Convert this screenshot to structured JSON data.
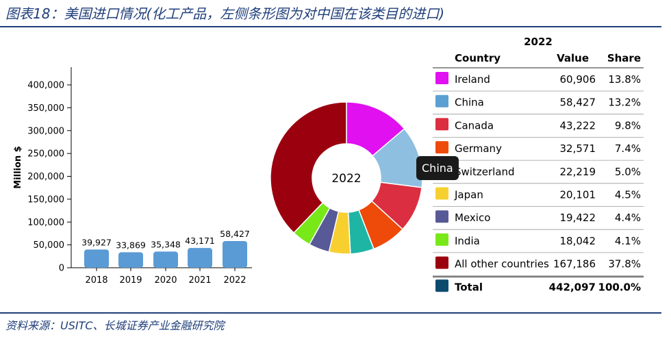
{
  "header": {
    "title": "图表18：美国进口情况(化工产品，左侧条形图为对中国在该类目的进口)",
    "source": "资料来源：USITC、长城证券产业金融研究院"
  },
  "tooltip": {
    "text": "China"
  },
  "donut": {
    "center_label": "2022"
  },
  "table": {
    "year": "2022",
    "columns": [
      "Country",
      "Value",
      "Share"
    ],
    "rows": [
      {
        "country": "Ireland",
        "value": "60,906",
        "share": "13.8%",
        "color": "#e010f0"
      },
      {
        "country": "China",
        "value": "58,427",
        "share": "13.2%",
        "color": "#5aa0d2"
      },
      {
        "country": "Canada",
        "value": "43,222",
        "share": "9.8%",
        "color": "#db2e40"
      },
      {
        "country": "Germany",
        "value": "32,571",
        "share": "7.4%",
        "color": "#ee4a0a"
      },
      {
        "country": "Switzerland",
        "value": "22,219",
        "share": "5.0%",
        "color": "#1fb5a5"
      },
      {
        "country": "Japan",
        "value": "20,101",
        "share": "4.5%",
        "color": "#f7d030"
      },
      {
        "country": "Mexico",
        "value": "19,422",
        "share": "4.4%",
        "color": "#575a96"
      },
      {
        "country": "India",
        "value": "18,042",
        "share": "4.1%",
        "color": "#78e818"
      },
      {
        "country": "All other countries",
        "value": "167,186",
        "share": "37.8%",
        "color": "#9b000e"
      }
    ],
    "total": {
      "label": "Total",
      "value": "442,097",
      "share": "100.0%",
      "color": "#0d4a6e"
    }
  },
  "chart_data": [
    {
      "type": "bar",
      "ylabel": "Million $",
      "categories": [
        "2018",
        "2019",
        "2020",
        "2021",
        "2022"
      ],
      "values": [
        39927,
        33869,
        35348,
        43171,
        58427
      ],
      "value_labels": [
        "39,927",
        "33,869",
        "35,348",
        "43,171",
        "58,427"
      ],
      "ylim": [
        0,
        400000
      ],
      "yticks": [
        0,
        50000,
        100000,
        150000,
        200000,
        250000,
        300000,
        350000,
        400000
      ],
      "ytick_labels": [
        "0",
        "50,000",
        "100,000",
        "150,000",
        "200,000",
        "250,000",
        "300,000",
        "350,000",
        "400,000"
      ],
      "color": "#5b9bd5"
    },
    {
      "type": "pie",
      "title": "2022",
      "labels": [
        "Ireland",
        "China",
        "Canada",
        "Germany",
        "Switzerland",
        "Japan",
        "Mexico",
        "India",
        "All other countries"
      ],
      "values": [
        60906,
        58427,
        43222,
        32571,
        22219,
        20101,
        19422,
        18042,
        167186
      ],
      "highlighted": "China",
      "colors": [
        "#e010f0",
        "#8fbfe0",
        "#db2e40",
        "#ee4a0a",
        "#1fb5a5",
        "#f7d030",
        "#575a96",
        "#78e818",
        "#9b000e"
      ]
    }
  ]
}
